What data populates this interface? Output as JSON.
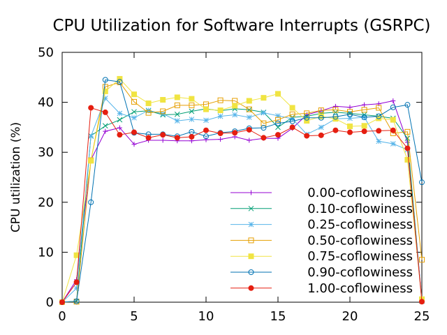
{
  "chart_data": {
    "type": "line",
    "title": "CPU Utilization for Software Interrupts (GSRPC)",
    "xlabel": "",
    "ylabel": "CPU utilization (%)",
    "xlim": [
      0,
      25
    ],
    "ylim": [
      0,
      50
    ],
    "x_ticks": [
      0,
      5,
      10,
      15,
      20,
      25
    ],
    "y_ticks": [
      0,
      10,
      20,
      30,
      40,
      50
    ],
    "grid": false,
    "legend_position": "lower-right",
    "x": [
      0,
      1,
      2,
      3,
      4,
      5,
      6,
      7,
      8,
      9,
      10,
      11,
      12,
      13,
      14,
      15,
      16,
      17,
      18,
      19,
      20,
      21,
      22,
      23,
      24,
      25
    ],
    "series": [
      {
        "name": "0.00-coflowiness",
        "color": "#9400d3",
        "marker": "plus",
        "values": [
          0,
          4.5,
          28.5,
          34.2,
          34.9,
          31.6,
          32.4,
          32.4,
          32.3,
          32.3,
          32.5,
          32.6,
          33.1,
          32.4,
          32.8,
          32.8,
          34.8,
          37.5,
          38.3,
          39.2,
          39.0,
          39.5,
          39.7,
          40.3,
          32.0,
          0.6
        ]
      },
      {
        "name": "0.10-coflowiness",
        "color": "#009e73",
        "marker": "x",
        "values": [
          0,
          0.2,
          33.3,
          35.3,
          36.5,
          38.1,
          38.3,
          37.5,
          37.6,
          38.2,
          38.7,
          38.3,
          38.7,
          38.5,
          38.0,
          35.0,
          37.0,
          37.2,
          37.8,
          38.0,
          37.8,
          37.5,
          37.2,
          36.8,
          32.8,
          0.2
        ]
      },
      {
        "name": "0.25-coflowiness",
        "color": "#56b4e9",
        "marker": "star",
        "values": [
          0,
          2.8,
          33.2,
          40.8,
          37.8,
          36.9,
          38.4,
          37.7,
          36.3,
          36.6,
          36.4,
          37.2,
          37.5,
          37.0,
          37.9,
          37.3,
          36.7,
          33.6,
          35.0,
          36.7,
          36.8,
          37.0,
          32.2,
          31.7,
          30.5,
          0.3
        ]
      },
      {
        "name": "0.50-coflowiness",
        "color": "#e69f00",
        "marker": "square",
        "values": [
          0,
          0.1,
          28.4,
          43.1,
          44.0,
          40.1,
          37.9,
          38.2,
          39.4,
          39.4,
          39.6,
          40.4,
          40.3,
          38.6,
          35.8,
          36.5,
          37.6,
          37.8,
          38.4,
          38.5,
          38.1,
          38.5,
          38.9,
          33.8,
          34.1,
          8.5
        ]
      },
      {
        "name": "0.75-coflowiness",
        "color": "#f0e442",
        "marker": "filled-square",
        "values": [
          0,
          9.4,
          28.3,
          42.2,
          44.7,
          41.6,
          39.8,
          40.5,
          41.0,
          40.7,
          38.6,
          38.4,
          39.3,
          40.3,
          40.9,
          41.7,
          38.9,
          36.3,
          37.2,
          36.7,
          35.2,
          35.3,
          36.8,
          36.5,
          28.5,
          0.6
        ]
      },
      {
        "name": "0.90-coflowiness",
        "color": "#0072b2",
        "marker": "circle",
        "values": [
          0,
          0.2,
          20.0,
          44.5,
          44.1,
          33.9,
          33.6,
          33.6,
          33.2,
          34.1,
          33.2,
          33.9,
          34.2,
          34.8,
          34.9,
          35.8,
          36.2,
          36.9,
          36.9,
          37.1,
          37.6,
          37.0,
          37.2,
          39.0,
          39.5,
          24.0
        ]
      },
      {
        "name": "1.00-coflowiness",
        "color": "#e51e10",
        "marker": "filled-circle",
        "values": [
          0,
          4.0,
          38.9,
          38.0,
          33.5,
          34.0,
          32.9,
          33.5,
          32.9,
          33.1,
          34.4,
          33.8,
          33.9,
          34.5,
          32.9,
          33.5,
          35.0,
          33.3,
          33.4,
          34.4,
          34.0,
          34.2,
          34.3,
          34.4,
          30.8,
          0.1
        ]
      }
    ]
  }
}
